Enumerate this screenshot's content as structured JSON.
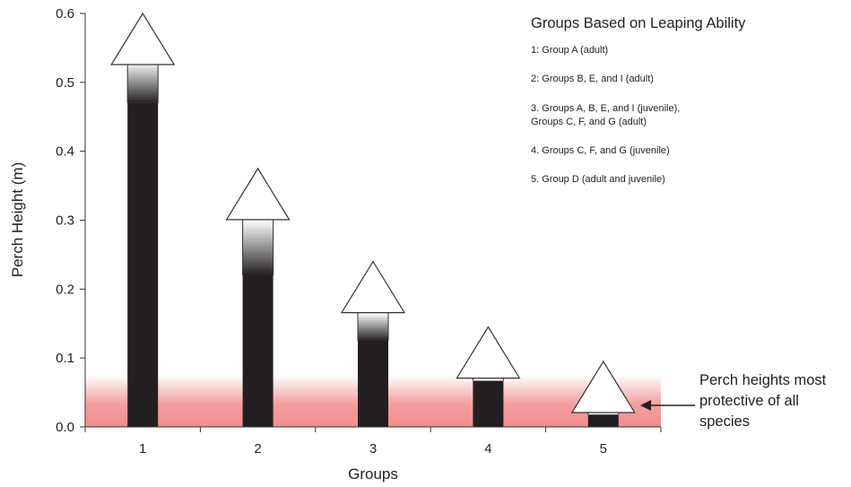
{
  "chart_data": {
    "type": "bar",
    "title": "",
    "xlabel": "Groups",
    "ylabel": "Perch Height (m)",
    "ylim": [
      0,
      0.6
    ],
    "yticks": [
      "0.0",
      "0.1",
      "0.2",
      "0.3",
      "0.4",
      "0.5",
      "0.6"
    ],
    "categories": [
      "1",
      "2",
      "3",
      "4",
      "5"
    ],
    "values": [
      0.47,
      0.22,
      0.125,
      0.067,
      0.018
    ],
    "arrow_top_values": [
      0.6,
      0.375,
      0.24,
      0.145,
      0.095
    ],
    "fade_start_values": [
      0.53,
      0.3,
      0.165,
      0.067,
      0.018
    ],
    "protective_band": [
      0.0,
      0.075
    ],
    "band_color": "#f08080",
    "bar_color": "#231f20"
  },
  "legend": {
    "title": "Groups Based on Leaping Ability",
    "items": [
      "1: Group A (adult)",
      "2: Groups B, E, and I (adult)",
      "3. Groups A, B, E, and I (juvenile), Groups C, F, and G (adult)",
      "4. Groups C, F, and G (juvenile)",
      "5. Group D (adult and juvenile)"
    ]
  },
  "annotation": {
    "text": "Perch heights most protective of all species"
  }
}
